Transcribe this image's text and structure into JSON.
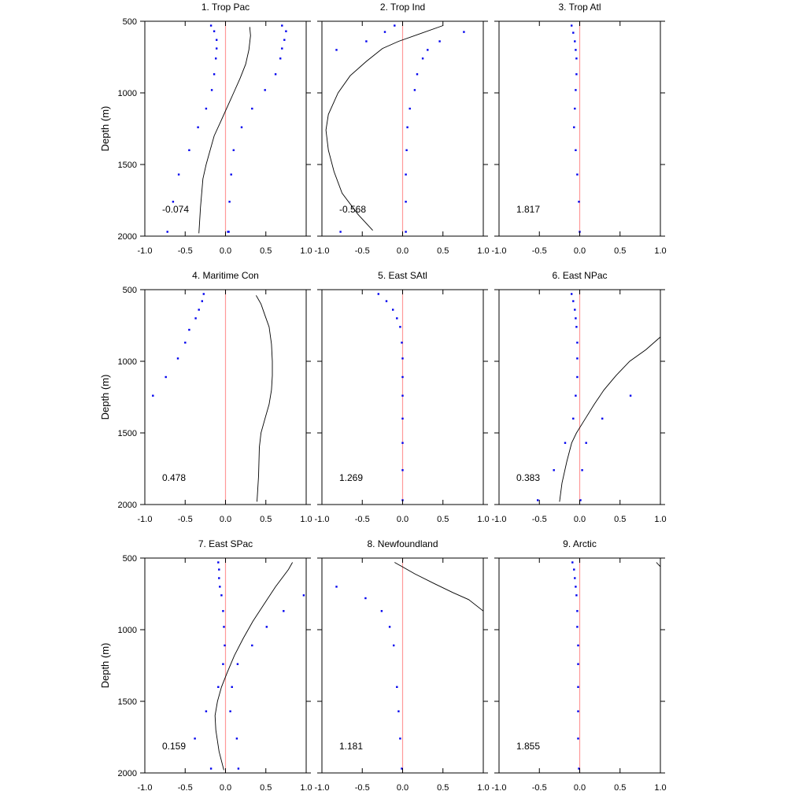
{
  "figure": {
    "ylabel": "Depth (m)",
    "colors": {
      "zero_line": "#ff9999",
      "points": "#0000ee",
      "profile": "#000000",
      "frame": "#000000"
    }
  },
  "chart_data": [
    {
      "type": "scatter",
      "title": "1. Trop Pac",
      "stat": "-0.074",
      "xlim": [
        -1.0,
        1.0
      ],
      "ylim": [
        500,
        2000
      ],
      "y_inverted": true,
      "xticks": [
        "-1.0",
        "-0.5",
        "0.0",
        "0.5",
        "1.0"
      ],
      "yticks": [
        "500",
        "1000",
        "1500",
        "2000"
      ],
      "series": [
        {
          "kind": "points",
          "x": [
            -0.18,
            -0.14,
            -0.11,
            -0.11,
            -0.12,
            -0.14,
            -0.17,
            -0.24,
            -0.34,
            -0.45,
            -0.58,
            -0.65,
            -0.72
          ],
          "y": [
            530,
            570,
            630,
            690,
            760,
            870,
            980,
            1110,
            1240,
            1400,
            1570,
            1760,
            1970
          ]
        },
        {
          "kind": "points",
          "x": [
            0.7,
            0.75,
            0.73,
            0.7,
            0.68,
            0.62,
            0.49,
            0.33,
            0.2,
            0.1,
            0.07,
            0.05,
            0.04,
            0.03
          ],
          "y": [
            530,
            570,
            630,
            690,
            760,
            870,
            980,
            1110,
            1240,
            1400,
            1570,
            1760,
            1970,
            1970
          ]
        },
        {
          "kind": "line",
          "x": [
            0.3,
            0.31,
            0.29,
            0.25,
            0.18,
            0.1,
            0.02,
            -0.06,
            -0.14,
            -0.19,
            -0.24,
            -0.28,
            -0.31,
            -0.33
          ],
          "y": [
            540,
            600,
            700,
            800,
            900,
            1000,
            1100,
            1200,
            1300,
            1400,
            1500,
            1600,
            1800,
            1980
          ]
        }
      ]
    },
    {
      "type": "scatter",
      "title": "2. Trop Ind",
      "stat": "-0.568",
      "xlim": [
        -1.0,
        1.0
      ],
      "ylim": [
        500,
        2000
      ],
      "y_inverted": true,
      "xticks": [
        "-1.0",
        "-0.5",
        "0.0",
        "0.5",
        "1.0"
      ],
      "yticks": [
        "500",
        "1000",
        "1500",
        "2000"
      ],
      "series": [
        {
          "kind": "points",
          "x": [
            -0.1,
            -0.22,
            -0.45,
            -0.82
          ],
          "y": [
            530,
            575,
            640,
            700
          ]
        },
        {
          "kind": "points",
          "x": [
            0.76,
            0.46,
            0.31,
            0.25,
            0.18,
            0.15,
            0.09,
            0.06,
            0.05,
            0.04,
            0.04,
            0.04
          ],
          "y": [
            575,
            640,
            700,
            760,
            870,
            980,
            1110,
            1240,
            1400,
            1570,
            1760,
            1970
          ]
        },
        {
          "kind": "points",
          "x": [
            -0.77
          ],
          "y": [
            1970
          ]
        },
        {
          "kind": "line",
          "x": [
            0.5,
            0.2,
            -0.05,
            -0.25,
            -0.45,
            -0.65,
            -0.8,
            -0.92,
            -0.95,
            -0.92,
            -0.85,
            -0.75,
            -0.55,
            -0.37
          ],
          "y": [
            530,
            590,
            640,
            690,
            780,
            880,
            1000,
            1150,
            1260,
            1400,
            1550,
            1700,
            1850,
            1960
          ]
        }
      ]
    },
    {
      "type": "scatter",
      "title": "3. Trop Atl",
      "stat": "1.817",
      "xlim": [
        -1.0,
        1.0
      ],
      "ylim": [
        500,
        2000
      ],
      "y_inverted": true,
      "xticks": [
        "-1.0",
        "-0.5",
        "0.0",
        "0.5",
        "1.0"
      ],
      "yticks": [
        "500",
        "1000",
        "1500",
        "2000"
      ],
      "series": [
        {
          "kind": "points",
          "x": [
            -0.1,
            -0.08,
            -0.06,
            -0.05,
            -0.04,
            -0.04,
            -0.05,
            -0.06,
            -0.07,
            -0.05,
            -0.03,
            -0.01,
            0.0
          ],
          "y": [
            530,
            580,
            640,
            700,
            760,
            870,
            980,
            1110,
            1240,
            1400,
            1570,
            1760,
            1970
          ]
        }
      ]
    },
    {
      "type": "scatter",
      "title": "4. Maritime Con",
      "stat": "0.478",
      "xlim": [
        -1.0,
        1.0
      ],
      "ylim": [
        500,
        2000
      ],
      "y_inverted": true,
      "xticks": [
        "-1.0",
        "-0.5",
        "0.0",
        "0.5",
        "1.0"
      ],
      "yticks": [
        "500",
        "1000",
        "1500",
        "2000"
      ],
      "series": [
        {
          "kind": "points",
          "x": [
            -0.27,
            -0.29,
            -0.33,
            -0.37,
            -0.45,
            -0.5,
            -0.59,
            -0.74,
            -0.9
          ],
          "y": [
            530,
            580,
            640,
            700,
            780,
            870,
            980,
            1110,
            1240
          ]
        },
        {
          "kind": "line",
          "x": [
            0.38,
            0.44,
            0.49,
            0.54,
            0.57,
            0.58,
            0.58,
            0.57,
            0.54,
            0.49,
            0.44,
            0.42,
            0.41,
            0.39
          ],
          "y": [
            540,
            600,
            680,
            760,
            880,
            1000,
            1100,
            1200,
            1300,
            1400,
            1500,
            1600,
            1800,
            1980
          ]
        }
      ]
    },
    {
      "type": "scatter",
      "title": "5. East SAtl",
      "stat": "1.269",
      "xlim": [
        -1.0,
        1.0
      ],
      "ylim": [
        500,
        2000
      ],
      "y_inverted": true,
      "xticks": [
        "-1.0",
        "-0.5",
        "0.0",
        "0.5",
        "1.0"
      ],
      "yticks": [
        "500",
        "1000",
        "1500",
        "2000"
      ],
      "series": [
        {
          "kind": "points",
          "x": [
            -0.3,
            -0.2,
            -0.12,
            -0.07,
            -0.03,
            -0.01,
            0.0,
            0.0,
            0.0,
            0.0,
            0.0,
            0.0,
            0.0
          ],
          "y": [
            530,
            580,
            640,
            700,
            760,
            870,
            980,
            1110,
            1240,
            1400,
            1570,
            1760,
            1970
          ]
        }
      ]
    },
    {
      "type": "scatter",
      "title": "6. East NPac",
      "stat": "0.383",
      "xlim": [
        -1.0,
        1.0
      ],
      "ylim": [
        500,
        2000
      ],
      "y_inverted": true,
      "xticks": [
        "-1.0",
        "-0.5",
        "0.0",
        "0.5",
        "1.0"
      ],
      "yticks": [
        "500",
        "1000",
        "1500",
        "2000"
      ],
      "series": [
        {
          "kind": "points",
          "x": [
            -0.1,
            -0.08,
            -0.06,
            -0.05,
            -0.04,
            -0.03,
            -0.03,
            -0.03,
            -0.05,
            -0.08,
            -0.18,
            -0.32,
            -0.52
          ],
          "y": [
            530,
            580,
            640,
            700,
            760,
            870,
            980,
            1110,
            1240,
            1400,
            1570,
            1760,
            1970
          ]
        },
        {
          "kind": "points",
          "x": [
            0.63,
            0.28,
            0.08,
            0.03,
            0.01
          ],
          "y": [
            1240,
            1400,
            1570,
            1760,
            1970
          ]
        },
        {
          "kind": "line",
          "x": [
            1.0,
            0.82,
            0.62,
            0.45,
            0.3,
            0.18,
            0.07,
            -0.04,
            -0.1,
            -0.16,
            -0.22,
            -0.25
          ],
          "y": [
            830,
            920,
            1000,
            1100,
            1200,
            1300,
            1400,
            1500,
            1570,
            1700,
            1850,
            1980
          ]
        }
      ]
    },
    {
      "type": "scatter",
      "title": "7. East SPac",
      "stat": "0.159",
      "xlim": [
        -1.0,
        1.0
      ],
      "ylim": [
        500,
        2000
      ],
      "y_inverted": true,
      "xticks": [
        "-1.0",
        "-0.5",
        "0.0",
        "0.5",
        "1.0"
      ],
      "yticks": [
        "500",
        "1000",
        "1500",
        "2000"
      ],
      "series": [
        {
          "kind": "points",
          "x": [
            -0.09,
            -0.08,
            -0.08,
            -0.07,
            -0.05,
            -0.03,
            -0.02,
            -0.01,
            -0.03,
            -0.09,
            -0.24,
            -0.38,
            -0.18
          ],
          "y": [
            530,
            580,
            640,
            700,
            760,
            870,
            980,
            1110,
            1240,
            1400,
            1570,
            1760,
            1970
          ]
        },
        {
          "kind": "points",
          "x": [
            0.97,
            0.72,
            0.51,
            0.33,
            0.15,
            0.08,
            0.06,
            0.14,
            0.16
          ],
          "y": [
            760,
            870,
            980,
            1110,
            1240,
            1400,
            1570,
            1760,
            1970
          ]
        },
        {
          "kind": "line",
          "x": [
            0.83,
            0.78,
            0.62,
            0.48,
            0.34,
            0.22,
            0.11,
            0.02,
            -0.05,
            -0.1,
            -0.13,
            -0.12,
            -0.08,
            -0.02
          ],
          "y": [
            530,
            580,
            700,
            820,
            940,
            1060,
            1180,
            1300,
            1400,
            1500,
            1600,
            1700,
            1850,
            1980
          ]
        }
      ]
    },
    {
      "type": "scatter",
      "title": "8. Newfoundland",
      "stat": "1.181",
      "xlim": [
        -1.0,
        1.0
      ],
      "ylim": [
        500,
        2000
      ],
      "y_inverted": true,
      "xticks": [
        "-1.0",
        "-0.5",
        "0.0",
        "0.5",
        "1.0"
      ],
      "yticks": [
        "500",
        "1000",
        "1500",
        "2000"
      ],
      "series": [
        {
          "kind": "points",
          "x": [
            -0.82,
            -0.46,
            -0.26,
            -0.16,
            -0.11,
            -0.07,
            -0.05,
            -0.03,
            -0.01
          ],
          "y": [
            700,
            780,
            870,
            980,
            1110,
            1400,
            1570,
            1760,
            1970
          ]
        },
        {
          "kind": "line",
          "x": [
            -0.1,
            0.15,
            0.4,
            0.62,
            0.82,
            1.0
          ],
          "y": [
            530,
            610,
            680,
            740,
            790,
            870
          ]
        }
      ]
    },
    {
      "type": "scatter",
      "title": "9. Arctic",
      "stat": "1.855",
      "xlim": [
        -1.0,
        1.0
      ],
      "ylim": [
        500,
        2000
      ],
      "y_inverted": true,
      "xticks": [
        "-1.0",
        "-0.5",
        "0.0",
        "0.5",
        "1.0"
      ],
      "yticks": [
        "500",
        "1000",
        "1500",
        "2000"
      ],
      "series": [
        {
          "kind": "points",
          "x": [
            -0.09,
            -0.07,
            -0.06,
            -0.05,
            -0.04,
            -0.03,
            -0.03,
            -0.02,
            -0.02,
            -0.02,
            -0.02,
            -0.02,
            -0.01
          ],
          "y": [
            530,
            580,
            640,
            700,
            760,
            870,
            980,
            1110,
            1240,
            1400,
            1570,
            1760,
            1970
          ]
        },
        {
          "kind": "line",
          "x": [
            0.95,
            1.0
          ],
          "y": [
            530,
            560
          ]
        }
      ]
    }
  ]
}
